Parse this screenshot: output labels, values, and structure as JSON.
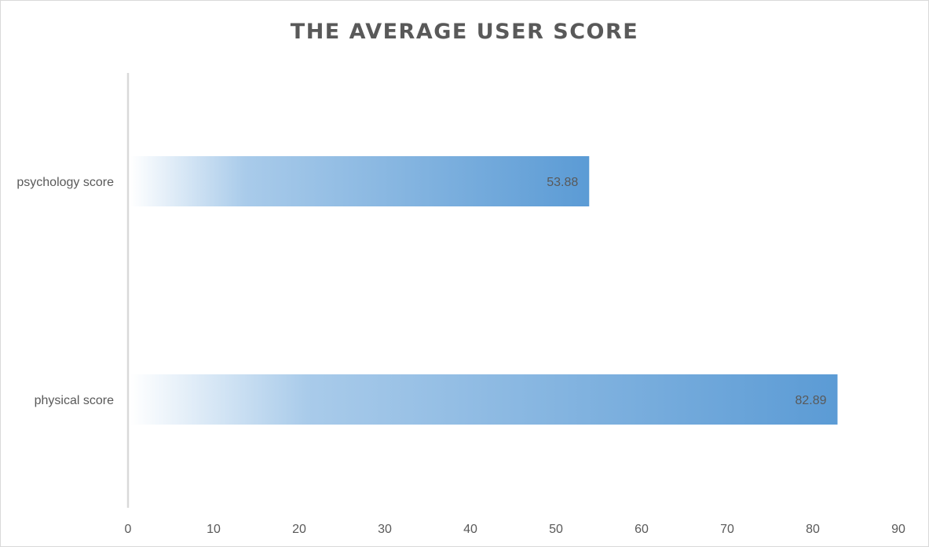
{
  "chart_data": {
    "type": "bar",
    "orientation": "horizontal",
    "title": "THE AVERAGE USER SCORE",
    "categories": [
      "psychology score",
      "physical score"
    ],
    "values": [
      53.88,
      82.89
    ],
    "data_labels": [
      "53.88",
      "82.89"
    ],
    "xlim": [
      0,
      90
    ],
    "ticks": [
      0,
      10,
      20,
      30,
      40,
      50,
      60,
      70,
      80,
      90
    ],
    "tick_labels": [
      "0",
      "10",
      "20",
      "30",
      "40",
      "50",
      "60",
      "70",
      "80",
      "90"
    ],
    "xlabel": "",
    "ylabel": "",
    "grid": false,
    "legend": "none",
    "colors": {
      "bar_start": "#ffffff",
      "bar_end": "#5b9bd5",
      "text": "#595959",
      "axis": "#d9d9d9"
    }
  }
}
